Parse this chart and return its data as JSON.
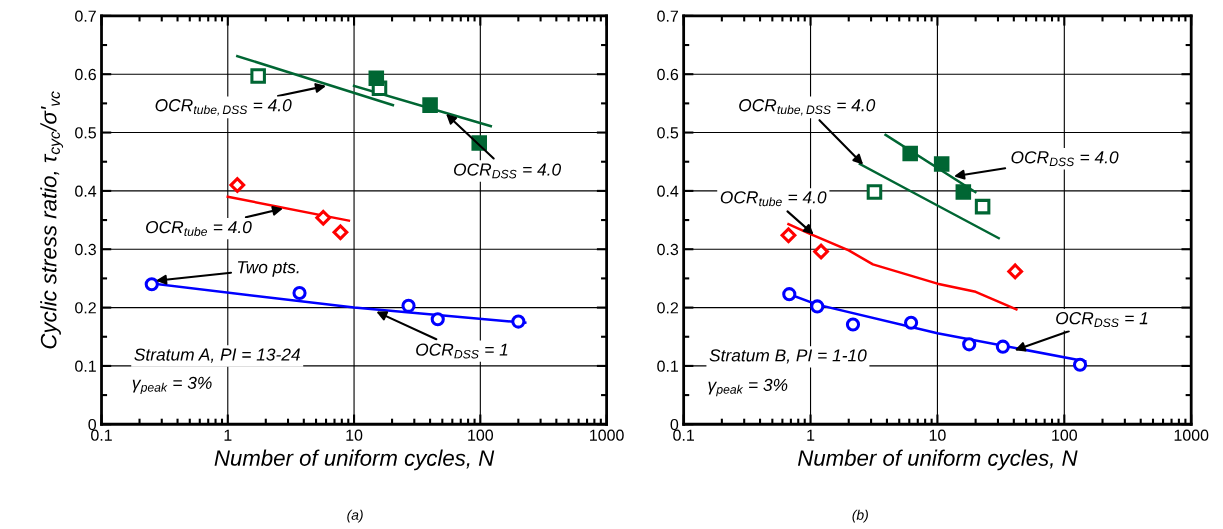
{
  "chart_data": [
    {
      "type": "scatter",
      "xlabel": "Number of uniform cycles, N",
      "ylabel": "Cyclic stress ratio, τ$_{cyc}$/σ'$_{vc}$",
      "log": "x",
      "grid": true,
      "xlim": [
        0.1,
        1000
      ],
      "xticks": [
        {
          "value": 0.1,
          "label": "0.1"
        },
        1,
        10,
        100,
        1000
      ],
      "ylim": [
        0,
        0.7
      ],
      "yticks": [
        0,
        0.1,
        0.2,
        0.3,
        0.4,
        0.5,
        0.6,
        0.7
      ],
      "series": [
        {
          "type": "scatter",
          "color": "#0000ff",
          "marker": "circle",
          "x": [
            0.25,
            3.7,
            27,
            46,
            200
          ],
          "values": [
            0.24,
            0.225,
            0.203,
            0.18,
            0.176
          ]
        },
        {
          "type": "line",
          "color": "#0000ff",
          "marker": "none",
          "x": [
            0.28,
            10,
            227
          ],
          "values": [
            0.24,
            0.2,
            0.174
          ]
        },
        {
          "type": "scatter",
          "color": "#ff0000",
          "marker": "diamond",
          "x": [
            1.19,
            5.7,
            7.8
          ],
          "values": [
            0.41,
            0.354,
            0.329
          ]
        },
        {
          "type": "line",
          "color": "#ff0000",
          "marker": "none",
          "x": [
            1.0,
            9.1
          ],
          "values": [
            0.39,
            0.349
          ]
        },
        {
          "type": "scatter",
          "color": "#006633",
          "marker": "square",
          "x": [
            1.74,
            15.9
          ],
          "values": [
            0.597,
            0.576
          ]
        },
        {
          "type": "line",
          "color": "#006633",
          "marker": "none",
          "x": [
            1.19,
            20.3
          ],
          "values": [
            0.631,
            0.547
          ]
        },
        {
          "color": "#006633",
          "marker": "square",
          "x": [
            15,
            40,
            98
          ],
          "values": [
            0.593,
            0.547,
            0.482
          ]
        },
        {
          "type": "line",
          "color": "#006633",
          "marker": "none",
          "x": [
            10,
            121
          ],
          "values": [
            0.58,
            0.511
          ]
        }
      ],
      "annotations": [
        {
          "text": "OCR$_{tube,DSS}$ = 4.0",
          "x": 6.0,
          "y": 0.58
        },
        {
          "text": "OCR$_{DSS}$ = 4.0",
          "x": 53.5,
          "y": 0.532
        },
        {
          "text": "OCR$_{tube}$ = 4.0",
          "x": 2.74,
          "y": 0.37
        },
        {
          "text": "Two pts.",
          "x": 0.27,
          "y": 0.246
        },
        {
          "text": "OCR$_{DSS}$ = 1",
          "x": 15,
          "y": 0.193
        },
        "Stratum A, PI = 13-24",
        "γ$_{peak}$ = 3%",
        "(a)"
      ]
    },
    {
      "type": "scatter",
      "xlabel": "Number of uniform cycles, N",
      "log": "x",
      "grid": true,
      "xlim": [
        0.1,
        1000
      ],
      "xticks": [
        {
          "value": 0.1,
          "label": "0.1"
        },
        1,
        10,
        100,
        1000
      ],
      "ylim": [
        0,
        0.7
      ],
      "yticks": [
        0,
        0.1,
        0.2,
        0.3,
        0.4,
        0.5,
        0.6,
        0.7
      ],
      "series": [
        {
          "type": "scatter",
          "color": "#0000ff",
          "marker": "circle",
          "x": [
            0.68,
            1.13,
            2.16,
            6.2,
            17.8,
            32.8,
            133
          ],
          "values": [
            0.223,
            0.202,
            0.171,
            0.174,
            0.137,
            0.133,
            0.102
          ]
        },
        {
          "type": "line",
          "color": "#0000ff",
          "marker": "none",
          "x": [
            0.68,
            1.13,
            10,
            146
          ],
          "values": [
            0.223,
            0.205,
            0.156,
            0.108
          ]
        },
        {
          "type": "scatter",
          "color": "#ff0000",
          "marker": "diamond",
          "x": [
            0.67,
            1.21,
            41
          ],
          "values": [
            0.324,
            0.296,
            0.262
          ]
        },
        {
          "type": "line",
          "color": "#ff0000",
          "marker": "none",
          "x": [
            0.67,
            1,
            2,
            3.1,
            10,
            20,
            41.9
          ],
          "values": [
            0.343,
            0.326,
            0.298,
            0.274,
            0.241,
            0.227,
            0.197
          ]
        },
        {
          "type": "scatter",
          "color": "#006633",
          "marker": "square",
          "x": [
            3.19,
            22.7
          ],
          "values": [
            0.398,
            0.373
          ]
        },
        {
          "type": "line",
          "color": "#006633",
          "marker": "none",
          "x": [
            2.45,
            10,
            30.4
          ],
          "values": [
            0.446,
            0.375,
            0.319
          ]
        },
        {
          "color": "#006633",
          "marker": "square",
          "x": [
            6.1,
            10.8,
            16
          ],
          "values": [
            0.464,
            0.446,
            0.398
          ]
        },
        {
          "type": "line",
          "color": "#006633",
          "marker": "none",
          "x": [
            3.9,
            19.9
          ],
          "values": [
            0.496,
            0.398
          ]
        }
      ],
      "annotations": [
        {
          "text": "OCR$_{tube,DSS}$ = 4.0",
          "x": 2.6,
          "y": 0.445
        },
        {
          "text": "OCR$_{DSS}$ = 4.0",
          "x": 13.5,
          "y": 0.425
        },
        {
          "text": "OCR$_{tube}$ = 4.0",
          "x": 1.06,
          "y": 0.325
        },
        {
          "text": "OCR$_{DSS}$ = 1",
          "x": 40.6,
          "y": 0.127
        },
        "Stratum B, PI = 1-10",
        "γ$_{peak}$ = 3%",
        "(b)"
      ]
    }
  ]
}
